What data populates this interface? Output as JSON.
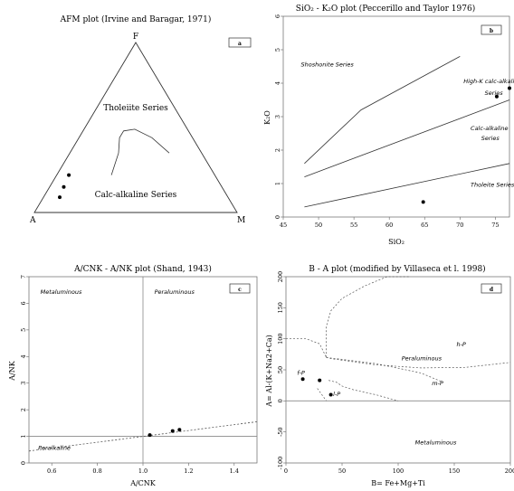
{
  "colors": {
    "line": "#333333",
    "dashed": "#555555",
    "point": "#000000",
    "frame": "#666666"
  },
  "chart_data": [
    {
      "id": "a",
      "type": "ternary",
      "title": "AFM plot (Irvine and Baragar, 1971)",
      "badge": "a",
      "vertices": {
        "top": "F",
        "left": "A",
        "right": "M"
      },
      "regions": [
        "Tholeiite Series",
        "Calc-alkaline Series"
      ],
      "points": [
        {
          "a": 0.72,
          "f": 0.22,
          "m": 0.06
        },
        {
          "a": 0.78,
          "f": 0.15,
          "m": 0.07
        },
        {
          "a": 0.83,
          "f": 0.09,
          "m": 0.08
        }
      ],
      "boundary": [
        {
          "a": 0.51,
          "f": 0.22,
          "m": 0.27
        },
        {
          "a": 0.41,
          "f": 0.35,
          "m": 0.24
        },
        {
          "a": 0.36,
          "f": 0.44,
          "m": 0.2
        },
        {
          "a": 0.32,
          "f": 0.48,
          "m": 0.2
        },
        {
          "a": 0.26,
          "f": 0.49,
          "m": 0.25
        },
        {
          "a": 0.2,
          "f": 0.44,
          "m": 0.36
        },
        {
          "a": 0.16,
          "f": 0.35,
          "m": 0.49
        }
      ]
    },
    {
      "id": "b",
      "type": "scatter",
      "title": "SiO₂ - K₂O plot (Peccerillo and Taylor 1976)",
      "badge": "b",
      "xlabel": "SiO₂",
      "ylabel": "K₂O",
      "xlim": [
        45,
        77
      ],
      "ylim": [
        0,
        6
      ],
      "xticks": [
        45,
        50,
        55,
        60,
        65,
        70,
        75
      ],
      "yticks": [
        0,
        1,
        2,
        3,
        4,
        5,
        6
      ],
      "lines": [
        {
          "x": [
            48,
            56,
            70
          ],
          "y": [
            1.6,
            3.2,
            4.8
          ]
        },
        {
          "x": [
            48,
            77
          ],
          "y": [
            1.2,
            3.5
          ]
        },
        {
          "x": [
            48,
            77
          ],
          "y": [
            0.3,
            1.6
          ]
        }
      ],
      "labels": [
        {
          "text": "Shoshonite Series",
          "x": 47.5,
          "y": 4.5
        },
        {
          "text": "High-K calc-alkaline",
          "x": 70.5,
          "y": 4.0
        },
        {
          "text": "Series",
          "x": 73.5,
          "y": 3.65
        },
        {
          "text": "Calc-alkaline",
          "x": 71.5,
          "y": 2.6
        },
        {
          "text": "Series",
          "x": 73,
          "y": 2.3
        },
        {
          "text": "Tholeite Series",
          "x": 71.5,
          "y": 0.9
        }
      ],
      "points": [
        {
          "x": 64.8,
          "y": 0.45
        },
        {
          "x": 75.2,
          "y": 3.6
        },
        {
          "x": 77,
          "y": 3.85
        }
      ]
    },
    {
      "id": "c",
      "type": "scatter",
      "title": "A/CNK - A/NK plot (Shand, 1943)",
      "badge": "c",
      "xlabel": "A/CNK",
      "ylabel": "A/NK",
      "xlim": [
        0.5,
        1.5
      ],
      "ylim": [
        0,
        7
      ],
      "xticks": [
        0.6,
        0.8,
        1.0,
        1.2,
        1.4
      ],
      "xticklabels": [
        "0.6",
        "0.8",
        "1.0",
        "1.2",
        "1.4"
      ],
      "yticks": [
        0,
        1,
        2,
        3,
        4,
        5,
        6,
        7
      ],
      "vline": 1.0,
      "hline": 1.0,
      "dashed": {
        "x": [
          0.5,
          1.5
        ],
        "y": [
          0.45,
          1.55
        ]
      },
      "labels": [
        {
          "text": "Metaluminous",
          "x": 0.55,
          "y": 6.35
        },
        {
          "text": "Peraluminous",
          "x": 1.05,
          "y": 6.35
        },
        {
          "text": "Peralkaline",
          "x": 0.54,
          "y": 0.5
        }
      ],
      "points": [
        {
          "x": 1.03,
          "y": 1.05
        },
        {
          "x": 1.13,
          "y": 1.2
        },
        {
          "x": 1.16,
          "y": 1.25
        }
      ]
    },
    {
      "id": "d",
      "type": "scatter",
      "title": "B - A plot (modified by Villaseca et l. 1998)",
      "badge": "d",
      "xlabel": "B= Fe+Mg+Ti",
      "ylabel": "A= Al-(K+Na2+Ca)",
      "xlim": [
        0,
        200
      ],
      "ylim": [
        -100,
        200
      ],
      "xticks": [
        0,
        50,
        100,
        150,
        200
      ],
      "yticks": [
        -100,
        -50,
        0,
        50,
        100,
        150,
        200
      ],
      "hline": 0,
      "labels": [
        {
          "text": "h-P",
          "x": 152,
          "y": 88
        },
        {
          "text": "Peraluminous",
          "x": 103,
          "y": 65
        },
        {
          "text": "m-P",
          "x": 130,
          "y": 25
        },
        {
          "text": "f-P",
          "x": 10,
          "y": 42
        },
        {
          "text": "l-P",
          "x": 42,
          "y": 8
        },
        {
          "text": "Metaluminous",
          "x": 115,
          "y": -70
        }
      ],
      "dashedCurves": [
        {
          "x": [
            0,
            18,
            30,
            36
          ],
          "y": [
            100,
            100,
            92,
            70
          ]
        },
        {
          "x": [
            36,
            40,
            80,
            120,
            160,
            200
          ],
          "y": [
            70,
            68,
            58,
            53,
            54,
            62
          ]
        },
        {
          "x": [
            36,
            80,
            120,
            140
          ],
          "y": [
            70,
            60,
            45,
            30
          ]
        },
        {
          "x": [
            38,
            45,
            50,
            60,
            80,
            100
          ],
          "y": [
            33,
            30,
            24,
            18,
            10,
            0
          ]
        },
        {
          "x": [
            36,
            36,
            40,
            50,
            70,
            90,
            110
          ],
          "y": [
            70,
            120,
            145,
            165,
            185,
            200,
            205
          ]
        },
        {
          "x": [
            28,
            36
          ],
          "y": [
            20,
            0
          ]
        }
      ],
      "points": [
        {
          "x": 15,
          "y": 35
        },
        {
          "x": 30,
          "y": 33
        },
        {
          "x": 40,
          "y": 10
        }
      ]
    }
  ]
}
